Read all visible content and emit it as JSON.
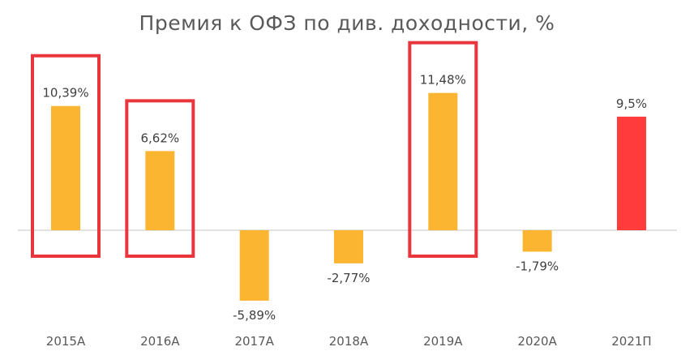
{
  "chart_data": {
    "type": "bar",
    "title": "Премия к ОФЗ по див. доходности, %",
    "xlabel": "",
    "ylabel": "",
    "categories": [
      "2015А",
      "2016А",
      "2017А",
      "2018А",
      "2019А",
      "2020А",
      "2021П"
    ],
    "values": [
      10.39,
      6.62,
      -5.89,
      -2.77,
      11.48,
      -1.79,
      9.5
    ],
    "data_labels": [
      "10,39%",
      "6,62%",
      "-5,89%",
      "-2,77%",
      "11,48%",
      "-1,79%",
      "9,5%"
    ],
    "bar_colors": [
      "#FBB531",
      "#FBB531",
      "#FBB531",
      "#FBB531",
      "#FBB531",
      "#FBB531",
      "#FF3B3B"
    ],
    "highlighted_categories": [
      "2015А",
      "2016А",
      "2019А"
    ],
    "highlight_color": "#E8363C",
    "axis_color": "#D9D9D9",
    "grid": false,
    "legend": "none"
  }
}
